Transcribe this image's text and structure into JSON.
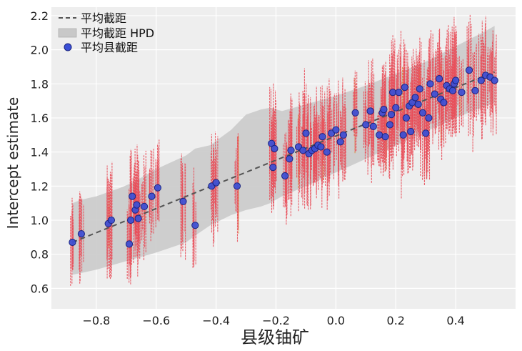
{
  "chart_data": {
    "type": "scatter",
    "title": "",
    "xlabel": "县级铀矿",
    "ylabel": "Intercept estimate",
    "xlim": [
      -0.95,
      0.6
    ],
    "ylim": [
      0.48,
      2.25
    ],
    "x_ticks": [
      -0.8,
      -0.6,
      -0.4,
      -0.2,
      0.0,
      0.2,
      0.4
    ],
    "x_tick_labels": [
      "−0.8",
      "−0.6",
      "−0.4",
      "−0.2",
      "0.0",
      "0.2",
      "0.4"
    ],
    "y_ticks": [
      0.6,
      0.8,
      1.0,
      1.2,
      1.4,
      1.6,
      1.8,
      2.0,
      2.2
    ],
    "y_tick_labels": [
      "0.6",
      "0.8",
      "1.0",
      "1.2",
      "1.4",
      "1.6",
      "1.8",
      "2.0",
      "2.2"
    ],
    "grid": true,
    "legend_position": "top-left",
    "colors": {
      "background": "#eeeeee",
      "grid": "#ffffff",
      "band": "#c8c8c8",
      "mean_line": "#555555",
      "points": "#3a4fd6",
      "points_edge": "#1a237e",
      "posterior_samples": "#e8505b",
      "posterior_samples_alt": "#e08a3c"
    },
    "series": [
      {
        "name": "平均截距",
        "kind": "line",
        "x": [
          -0.88,
          0.53
        ],
        "y": [
          0.87,
          1.87
        ]
      },
      {
        "name": "平均截距 HPD",
        "kind": "band",
        "x": [
          -0.88,
          -0.85,
          -0.8,
          -0.72,
          -0.68,
          -0.6,
          -0.5,
          -0.47,
          -0.42,
          -0.35,
          -0.3,
          -0.25,
          -0.22,
          -0.18,
          -0.1,
          0.0,
          0.1,
          0.2,
          0.3,
          0.4,
          0.5,
          0.53
        ],
        "lower": [
          0.68,
          0.69,
          0.71,
          0.75,
          0.77,
          0.81,
          0.87,
          0.91,
          0.97,
          1.03,
          1.06,
          1.08,
          1.1,
          1.14,
          1.2,
          1.28,
          1.36,
          1.44,
          1.52,
          1.6,
          1.67,
          1.69
        ],
        "upper": [
          1.1,
          1.12,
          1.14,
          1.19,
          1.22,
          1.3,
          1.38,
          1.42,
          1.44,
          1.53,
          1.62,
          1.65,
          1.66,
          1.64,
          1.68,
          1.73,
          1.79,
          1.86,
          1.93,
          2.02,
          2.11,
          2.14
        ]
      },
      {
        "name": "平均县截距",
        "kind": "scatter",
        "x": [
          -0.88,
          -0.85,
          -0.76,
          -0.75,
          -0.69,
          -0.685,
          -0.68,
          -0.67,
          -0.665,
          -0.66,
          -0.64,
          -0.615,
          -0.595,
          -0.51,
          -0.47,
          -0.415,
          -0.4,
          -0.33,
          -0.215,
          -0.21,
          -0.205,
          -0.17,
          -0.155,
          -0.15,
          -0.125,
          -0.11,
          -0.1,
          -0.09,
          -0.08,
          -0.07,
          -0.06,
          -0.05,
          -0.045,
          -0.03,
          -0.015,
          0.0,
          0.015,
          0.025,
          0.065,
          0.1,
          0.115,
          0.125,
          0.145,
          0.155,
          0.16,
          0.165,
          0.18,
          0.185,
          0.19,
          0.2,
          0.21,
          0.225,
          0.23,
          0.235,
          0.245,
          0.25,
          0.255,
          0.265,
          0.275,
          0.28,
          0.29,
          0.3,
          0.31,
          0.315,
          0.33,
          0.345,
          0.35,
          0.36,
          0.37,
          0.38,
          0.39,
          0.395,
          0.4,
          0.42,
          0.445,
          0.465,
          0.485,
          0.5,
          0.515,
          0.53
        ],
        "y": [
          0.87,
          0.92,
          0.98,
          1.0,
          0.86,
          1.0,
          1.14,
          1.06,
          1.09,
          1.01,
          1.08,
          1.14,
          1.19,
          1.11,
          0.97,
          1.2,
          1.22,
          1.2,
          1.45,
          1.31,
          1.42,
          1.26,
          1.36,
          1.41,
          1.43,
          1.41,
          1.51,
          1.39,
          1.41,
          1.42,
          1.44,
          1.43,
          1.49,
          1.4,
          1.51,
          1.53,
          1.46,
          1.5,
          1.63,
          1.56,
          1.64,
          1.55,
          1.5,
          1.63,
          1.65,
          1.49,
          1.56,
          1.62,
          1.75,
          1.66,
          1.75,
          1.5,
          1.78,
          1.6,
          1.67,
          1.52,
          1.69,
          1.72,
          1.68,
          1.77,
          1.63,
          1.51,
          1.6,
          1.8,
          1.74,
          1.83,
          1.71,
          1.69,
          1.79,
          1.77,
          1.76,
          1.8,
          1.82,
          1.75,
          1.88,
          1.76,
          1.82,
          1.85,
          1.84,
          1.82
        ]
      }
    ]
  },
  "legend": {
    "items": [
      {
        "label": "平均截距",
        "symbol": "dashed-line"
      },
      {
        "label": "平均截距 HPD",
        "symbol": "band-patch"
      },
      {
        "label": "平均县截距",
        "symbol": "circle-marker"
      }
    ]
  }
}
